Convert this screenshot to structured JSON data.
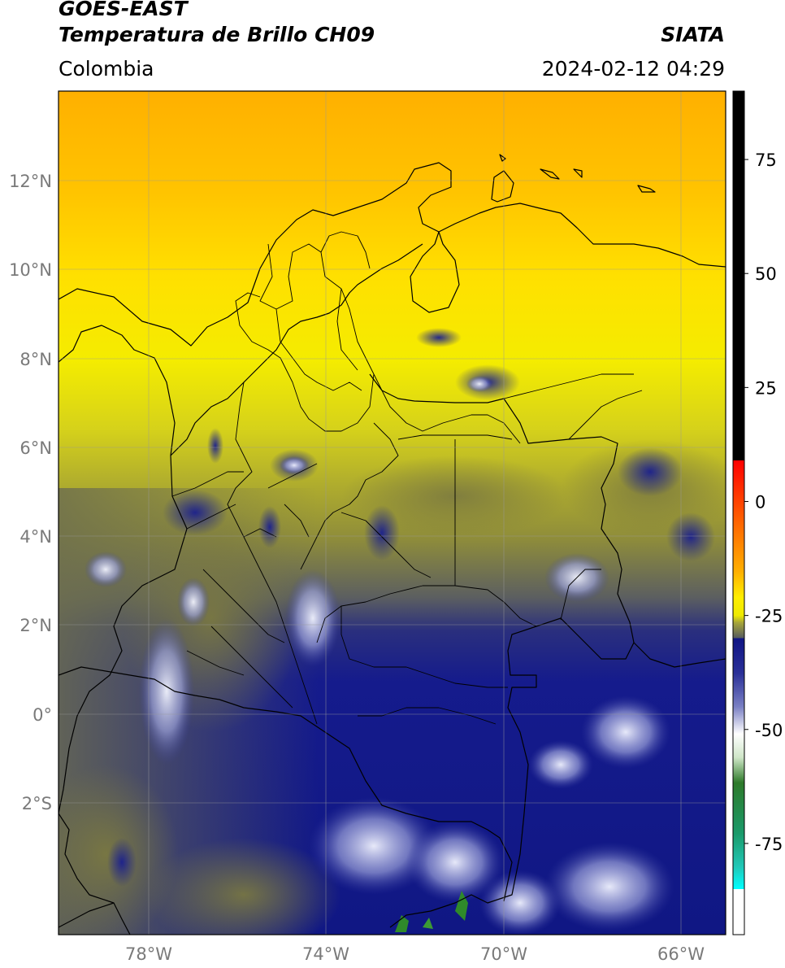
{
  "header": {
    "satellite": "GOES-EAST",
    "product": "Temperatura de Brillo CH09",
    "region": "Colombia",
    "source": "SIATA",
    "datetime": "2024-02-12 04:29"
  },
  "map": {
    "lat_ticks": [
      "12°N",
      "10°N",
      "8°N",
      "6°N",
      "4°N",
      "2°N",
      "0°",
      "2°S"
    ],
    "lon_ticks": [
      "78°W",
      "74°W",
      "70°W",
      "66°W"
    ],
    "extent": {
      "lon_min": -80.0,
      "lon_max": -65.0,
      "lat_min": -4.95,
      "lat_max": 14.0
    },
    "field_colors": {
      "warm_north": "#ffb400",
      "mid_yellow": "#f5e600",
      "olive": "#8a8a2a",
      "deep_blue": "#141a8c",
      "cold_white": "#e8eaf6"
    },
    "boundary_color": "#000000",
    "grid": true
  },
  "colorbar": {
    "ticks": [
      "75",
      "50",
      "25",
      "0",
      "-25",
      "-50",
      "-75"
    ],
    "tick_values": [
      75,
      50,
      25,
      0,
      -25,
      -50,
      -75
    ],
    "range": [
      -95,
      90
    ]
  }
}
